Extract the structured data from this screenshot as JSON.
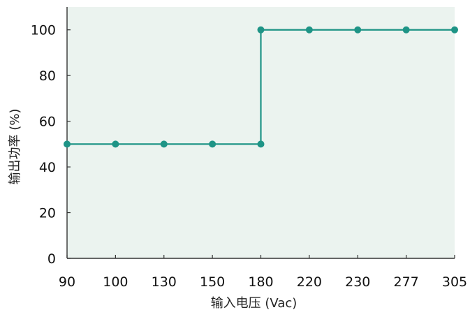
{
  "chart_data": {
    "type": "line",
    "step": true,
    "title": "",
    "xlabel": "输入电压 (Vac)",
    "ylabel": "输出功率 (%)",
    "categories": [
      "90",
      "100",
      "130",
      "150",
      "180",
      "220",
      "230",
      "277",
      "305"
    ],
    "series": [
      {
        "values": [
          50,
          50,
          50,
          50,
          50,
          100,
          100,
          100,
          100
        ],
        "color": "#1e9486"
      }
    ],
    "ylim": [
      0,
      110
    ],
    "yticks": [
      0,
      20,
      40,
      60,
      80,
      100
    ],
    "grid": false,
    "legend": "none"
  },
  "style": {
    "plot_background": "#ebf3ef",
    "line_color": "#1e9486",
    "axis_color": "#333333"
  }
}
